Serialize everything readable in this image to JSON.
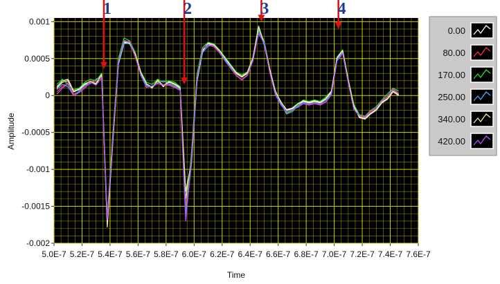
{
  "chart_data": {
    "type": "line",
    "xlabel": "Time",
    "ylabel": "Amplitude",
    "xlim": [
      5e-07,
      7.6e-07
    ],
    "ylim": [
      -0.002,
      0.00105
    ],
    "xticks": [
      {
        "value": 5e-07,
        "label": "5.0E-7"
      },
      {
        "value": 5.2e-07,
        "label": "5.2E-7"
      },
      {
        "value": 5.4e-07,
        "label": "5.4E-7"
      },
      {
        "value": 5.6e-07,
        "label": "5.6E-7"
      },
      {
        "value": 5.8e-07,
        "label": "5.8E-7"
      },
      {
        "value": 6e-07,
        "label": "6.0E-7"
      },
      {
        "value": 6.2e-07,
        "label": "6.2E-7"
      },
      {
        "value": 6.4e-07,
        "label": "6.4E-7"
      },
      {
        "value": 6.6e-07,
        "label": "6.6E-7"
      },
      {
        "value": 6.8e-07,
        "label": "6.8E-7"
      },
      {
        "value": 7e-07,
        "label": "7.0E-7"
      },
      {
        "value": 7.2e-07,
        "label": "7.2E-7"
      },
      {
        "value": 7.4e-07,
        "label": "7.4E-7"
      },
      {
        "value": 7.6e-07,
        "label": "7.6E-7"
      }
    ],
    "yticks": [
      0.001,
      0.0005,
      0,
      -0.0005,
      -0.001,
      -0.0015,
      -0.002
    ],
    "grid": true,
    "legend": "right",
    "x": [
      5.02e-07,
      5.06e-07,
      5.1e-07,
      5.14e-07,
      5.18e-07,
      5.22e-07,
      5.26e-07,
      5.3e-07,
      5.34e-07,
      5.38e-07,
      5.42e-07,
      5.46e-07,
      5.5e-07,
      5.54e-07,
      5.58e-07,
      5.62e-07,
      5.66e-07,
      5.7e-07,
      5.74e-07,
      5.78e-07,
      5.82e-07,
      5.86e-07,
      5.9e-07,
      5.94e-07,
      5.98e-07,
      6.02e-07,
      6.06e-07,
      6.1e-07,
      6.14e-07,
      6.18e-07,
      6.22e-07,
      6.26e-07,
      6.3e-07,
      6.34e-07,
      6.38e-07,
      6.42e-07,
      6.46e-07,
      6.5e-07,
      6.54e-07,
      6.58e-07,
      6.62e-07,
      6.66e-07,
      6.7e-07,
      6.74e-07,
      6.78e-07,
      6.82e-07,
      6.86e-07,
      6.9e-07,
      6.94e-07,
      6.98e-07,
      7.02e-07,
      7.06e-07,
      7.1e-07,
      7.14e-07,
      7.18e-07,
      7.22e-07,
      7.26e-07,
      7.3e-07,
      7.34e-07,
      7.38e-07,
      7.42e-07,
      7.46e-07
    ],
    "series": [
      {
        "name": "0.00",
        "color": "#ffffff",
        "values": [
          0.0001,
          0.00018,
          0.0002,
          5e-05,
          8e-05,
          0.00015,
          0.00018,
          0.00015,
          0.00028,
          -0.00175,
          -0.0006,
          0.00045,
          0.00072,
          0.0007,
          0.00055,
          0.0003,
          0.00015,
          0.0001,
          0.0002,
          0.00012,
          0.00018,
          0.00015,
          0.0001,
          -0.0014,
          -0.0009,
          0.0002,
          0.0006,
          0.0007,
          0.00068,
          0.0006,
          0.0005,
          0.0004,
          0.0003,
          0.00025,
          0.0003,
          0.0005,
          0.0009,
          0.0007,
          0.00035,
          5e-05,
          -0.0001,
          -0.0002,
          -0.00018,
          -0.00012,
          -8e-05,
          -0.0001,
          -8e-05,
          -0.0001,
          -5e-05,
          5e-05,
          0.0005,
          0.0006,
          0.0002,
          -0.00015,
          -0.0003,
          -0.00032,
          -0.00025,
          -0.0002,
          -0.0001,
          -5e-05,
          5e-05,
          0.0
        ]
      },
      {
        "name": "80.00",
        "color": "#ff3030",
        "values": [
          5e-05,
          0.00012,
          0.00018,
          2e-05,
          5e-05,
          0.00012,
          0.0002,
          0.00018,
          0.00025,
          -0.0017,
          -0.00055,
          0.00048,
          0.00075,
          0.00072,
          0.00052,
          0.00028,
          0.00012,
          0.00012,
          0.00018,
          0.00015,
          0.00015,
          0.00012,
          8e-05,
          -0.0015,
          -0.00085,
          0.00025,
          0.00062,
          0.00068,
          0.00066,
          0.00058,
          0.00048,
          0.00038,
          0.00028,
          0.00022,
          0.00028,
          0.00048,
          0.00085,
          0.00072,
          0.00032,
          2e-05,
          -0.00012,
          -0.00022,
          -0.0002,
          -0.00015,
          -0.0001,
          -0.00012,
          -0.0001,
          -0.00012,
          -8e-05,
          2e-05,
          0.00048,
          0.00058,
          0.00018,
          -0.00018,
          -0.00028,
          -0.0003,
          -0.00022,
          -0.00018,
          -8e-05,
          -2e-05,
          8e-05,
          2e-05
        ]
      },
      {
        "name": "170.00",
        "color": "#22e022",
        "values": [
          0.00015,
          0.00022,
          0.00015,
          8e-05,
          0.0001,
          0.00018,
          0.00022,
          0.0002,
          0.0003,
          -0.00165,
          -0.0005,
          0.0005,
          0.00078,
          0.00074,
          0.00058,
          0.00032,
          0.00018,
          0.00015,
          0.00022,
          0.00018,
          0.0002,
          0.00018,
          0.00012,
          -0.0016,
          -0.0008,
          0.00028,
          0.00065,
          0.00072,
          0.0007,
          0.00062,
          0.00052,
          0.00042,
          0.00032,
          0.00028,
          0.00032,
          0.00052,
          0.00088,
          0.00074,
          0.00036,
          4e-05,
          -8e-05,
          -0.00024,
          -0.0002,
          -0.00012,
          -6e-05,
          -8e-05,
          -6e-05,
          -8e-05,
          -2e-05,
          6e-05,
          0.00052,
          0.00062,
          0.00022,
          -0.00012,
          -0.00026,
          -0.00028,
          -0.0002,
          -0.00015,
          -6e-05,
          2e-05,
          0.0001,
          6e-05
        ]
      },
      {
        "name": "250.00",
        "color": "#40a8ff",
        "values": [
          8e-05,
          0.00015,
          0.00012,
          0.0,
          6e-05,
          0.00014,
          0.00016,
          0.00022,
          0.00026,
          -0.00172,
          -0.00058,
          0.00042,
          0.0007,
          0.00071,
          0.00054,
          0.00029,
          0.00014,
          0.00011,
          0.00017,
          0.0002,
          0.00016,
          0.00013,
          9e-05,
          -0.00162,
          -0.00095,
          0.00018,
          0.00058,
          0.00067,
          0.00069,
          0.00061,
          0.00049,
          0.00039,
          0.00031,
          0.00026,
          0.00031,
          0.00051,
          0.00092,
          0.00068,
          0.00033,
          3e-05,
          -0.00011,
          -0.00025,
          -0.00022,
          -0.00014,
          -9e-05,
          -0.00011,
          -9e-05,
          -0.00011,
          -6e-05,
          3e-05,
          0.00049,
          0.00059,
          0.00019,
          -0.00016,
          -0.00029,
          -0.00031,
          -0.00024,
          -0.00019,
          -9e-05,
          -4e-05,
          6e-05,
          1e-05
        ]
      },
      {
        "name": "340.00",
        "color": "#e8f0a0",
        "values": [
          0.00012,
          0.0002,
          0.00022,
          6e-05,
          9e-05,
          0.00016,
          0.00019,
          0.00016,
          0.00029,
          -0.00178,
          -0.00062,
          0.00044,
          0.00073,
          0.00071,
          0.00056,
          0.00031,
          0.00016,
          0.00011,
          0.00021,
          0.00013,
          0.00019,
          0.00016,
          0.00011,
          -0.0013,
          -0.00092,
          0.00019,
          0.00061,
          0.00071,
          0.00069,
          0.00061,
          0.00051,
          0.00041,
          0.00031,
          0.00026,
          0.00031,
          0.00051,
          0.00094,
          0.00071,
          0.00036,
          6e-05,
          -9e-05,
          -0.00019,
          -0.00017,
          -0.00011,
          -7e-05,
          -9e-05,
          -7e-05,
          -9e-05,
          -4e-05,
          6e-05,
          0.00051,
          0.00061,
          0.00021,
          -0.00014,
          -0.00029,
          -0.00031,
          -0.00024,
          -0.00019,
          -9e-05,
          -4e-05,
          6e-05,
          1e-05
        ]
      },
      {
        "name": "420.00",
        "color": "#b84cff",
        "values": [
          2e-05,
          0.0001,
          0.00016,
          0.0,
          4e-05,
          0.0001,
          0.00018,
          0.00014,
          0.00024,
          -0.00168,
          -0.00056,
          0.00046,
          0.00074,
          0.00073,
          0.00053,
          0.00027,
          0.00011,
          0.00013,
          0.00016,
          0.00014,
          0.00014,
          0.00011,
          7e-05,
          -0.0017,
          -0.00088,
          0.00022,
          0.00063,
          0.00069,
          0.00067,
          0.00059,
          0.00047,
          0.00037,
          0.00027,
          0.00021,
          0.00027,
          0.00047,
          0.00084,
          0.00071,
          0.00031,
          1e-05,
          -0.00013,
          -0.00021,
          -0.00019,
          -0.00016,
          -0.00011,
          -0.00013,
          -0.00011,
          -0.00013,
          -9e-05,
          1e-05,
          0.00047,
          0.00057,
          0.00017,
          -0.00019,
          -0.00027,
          -0.00029,
          -0.00021,
          -0.00017,
          -7e-05,
          -1e-05,
          9e-05,
          3e-05
        ]
      }
    ],
    "annotations": [
      {
        "label": "1",
        "x": 5.356e-07,
        "y": 0.00036
      },
      {
        "label": "2",
        "x": 5.93e-07,
        "y": 0.00015
      },
      {
        "label": "3",
        "x": 6.48e-07,
        "y": 0.001
      },
      {
        "label": "4",
        "x": 7.03e-07,
        "y": 0.0009
      }
    ]
  }
}
